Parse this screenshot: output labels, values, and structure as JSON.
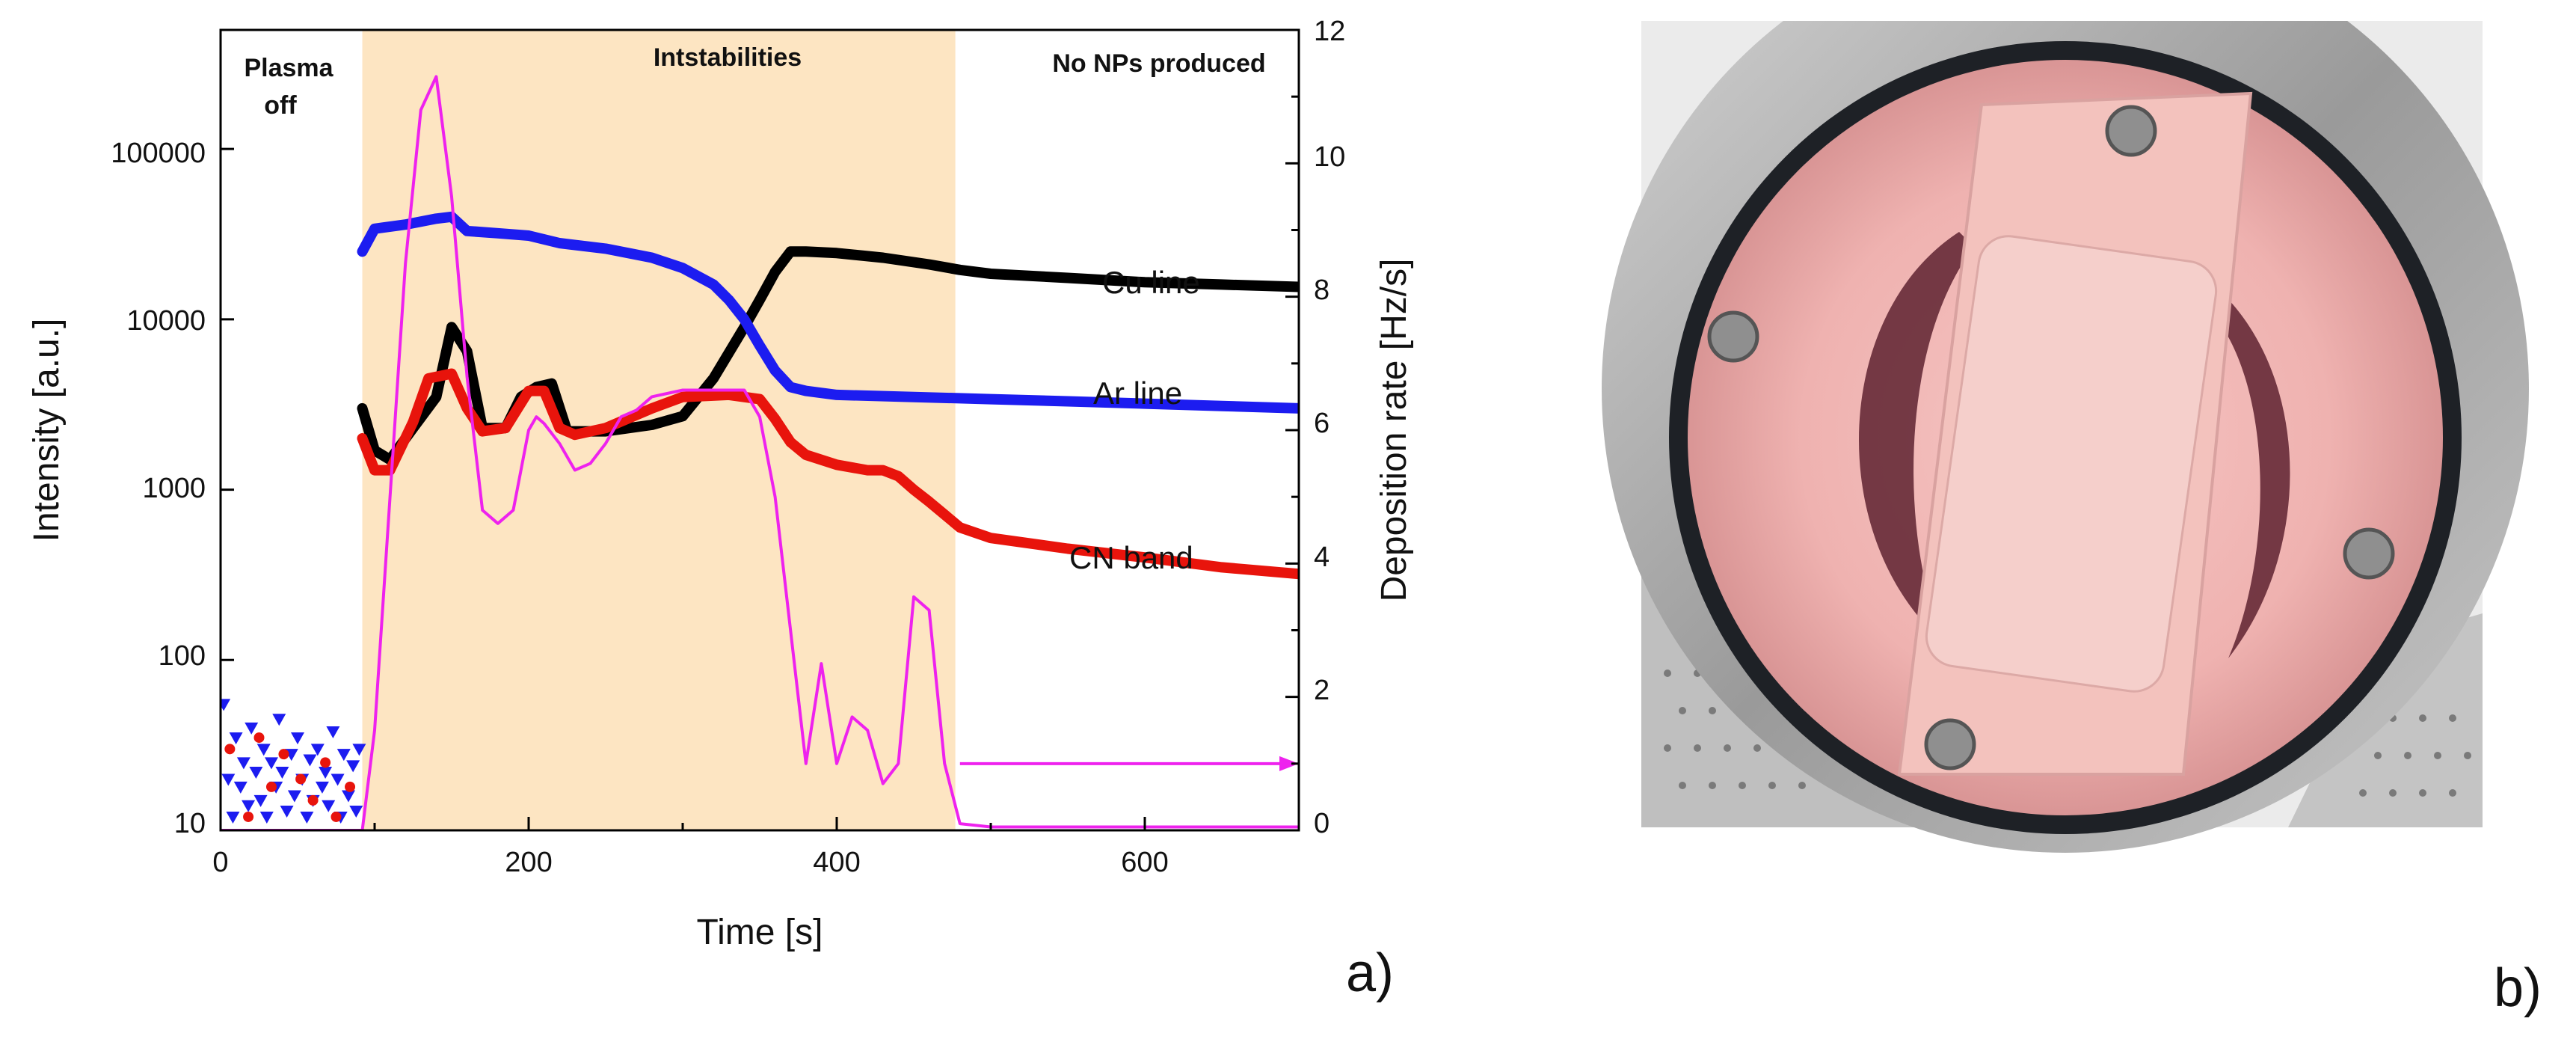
{
  "chart_data": {
    "type": "line",
    "panel_label": "a)",
    "xlabel": "Time [s]",
    "ylabel_left": "Intensity [a.u.]",
    "ylabel_right": "Deposition rate [Hz/s]",
    "xlim": [
      0,
      700
    ],
    "ylim_left": [
      10,
      500000
    ],
    "yscale_left": "log",
    "ylim_right": [
      0,
      12
    ],
    "x_ticks": [
      "0",
      "200",
      "400",
      "600"
    ],
    "y_left_ticks": [
      "10",
      "100",
      "1000",
      "10000",
      "100000"
    ],
    "y_right_ticks": [
      "0",
      "2",
      "4",
      "6",
      "8",
      "10",
      "12"
    ],
    "regions": [
      {
        "label_lines": [
          "Plasma",
          "off"
        ],
        "x_start": 0,
        "x_end": 92
      },
      {
        "label_lines": [
          "Intstabilities"
        ],
        "x_start": 92,
        "x_end": 477,
        "color": "#fde5c2"
      },
      {
        "label_lines": [
          "No NPs produced"
        ],
        "x_start": 477,
        "x_end": 700
      }
    ],
    "series": [
      {
        "name": "Cu line",
        "axis": "left",
        "color": "#000000",
        "x": [
          92,
          100,
          110,
          125,
          140,
          150,
          160,
          170,
          185,
          195,
          205,
          215,
          225,
          250,
          280,
          300,
          320,
          340,
          350,
          360,
          370,
          380,
          400,
          430,
          460,
          480,
          500,
          550,
          600,
          650,
          700
        ],
        "y": [
          3000,
          1700,
          1500,
          2300,
          3500,
          9000,
          6500,
          2300,
          2300,
          3500,
          4000,
          4200,
          2200,
          2200,
          2400,
          2700,
          4500,
          9000,
          13000,
          19000,
          25000,
          25000,
          24500,
          23000,
          21000,
          19500,
          18500,
          17500,
          16500,
          16000,
          15500
        ]
      },
      {
        "name": "Ar line",
        "axis": "left",
        "color": "#1c1cf0",
        "x": [
          92,
          100,
          120,
          140,
          150,
          160,
          180,
          200,
          220,
          250,
          280,
          300,
          320,
          330,
          340,
          350,
          360,
          370,
          380,
          400,
          450,
          500,
          550,
          600,
          650,
          700
        ],
        "y": [
          25000,
          34000,
          36000,
          39000,
          40000,
          33000,
          32000,
          31000,
          28000,
          26000,
          23000,
          20000,
          16000,
          13000,
          10000,
          7000,
          5000,
          4000,
          3800,
          3600,
          3500,
          3400,
          3300,
          3200,
          3100,
          3000
        ]
      },
      {
        "name": "CN band",
        "axis": "left",
        "color": "#e8140c",
        "x": [
          92,
          100,
          110,
          125,
          135,
          150,
          160,
          170,
          185,
          200,
          210,
          220,
          230,
          250,
          280,
          300,
          330,
          350,
          360,
          370,
          380,
          400,
          420,
          430,
          440,
          450,
          460,
          480,
          500,
          550,
          600,
          650,
          700
        ],
        "y": [
          2000,
          1300,
          1300,
          2500,
          4500,
          4800,
          3000,
          2200,
          2300,
          3800,
          3800,
          2300,
          2100,
          2300,
          3000,
          3500,
          3600,
          3400,
          2600,
          1900,
          1600,
          1400,
          1300,
          1300,
          1200,
          1000,
          850,
          600,
          520,
          450,
          400,
          350,
          320
        ]
      },
      {
        "name": "Deposition rate",
        "axis": "right",
        "color": "#ee22ee",
        "x": [
          0,
          92,
          100,
          110,
          120,
          130,
          140,
          150,
          160,
          170,
          180,
          190,
          200,
          205,
          210,
          220,
          230,
          240,
          250,
          260,
          270,
          280,
          300,
          320,
          340,
          350,
          360,
          370,
          380,
          390,
          400,
          410,
          420,
          430,
          440,
          450,
          460,
          470,
          480,
          500,
          550,
          600,
          650,
          700
        ],
        "y": [
          0,
          0,
          1.5,
          5.0,
          8.5,
          10.8,
          11.3,
          9.5,
          6.8,
          4.8,
          4.6,
          4.8,
          6.0,
          6.2,
          6.1,
          5.8,
          5.4,
          5.5,
          5.8,
          6.2,
          6.3,
          6.5,
          6.6,
          6.6,
          6.6,
          6.2,
          5.0,
          3.0,
          1.0,
          2.5,
          1.0,
          1.7,
          1.5,
          0.7,
          1.0,
          3.5,
          3.3,
          1.0,
          0.1,
          0.05,
          0.05,
          0.05,
          0.05,
          0.05
        ]
      },
      {
        "name": "Plasma off Ar noise",
        "axis": "left",
        "color": "#1c1cf0",
        "marker": "triangle-down",
        "x": [
          2,
          5,
          8,
          10,
          13,
          15,
          18,
          20,
          23,
          26,
          28,
          30,
          33,
          36,
          38,
          40,
          43,
          46,
          48,
          50,
          53,
          56,
          58,
          60,
          63,
          66,
          68,
          70,
          73,
          76,
          78,
          80,
          83,
          86,
          88,
          90
        ],
        "y": [
          55,
          20,
          12,
          35,
          18,
          25,
          14,
          40,
          22,
          15,
          30,
          12,
          25,
          18,
          45,
          22,
          13,
          28,
          16,
          35,
          20,
          12,
          26,
          15,
          30,
          18,
          22,
          14,
          38,
          20,
          12,
          28,
          16,
          24,
          13,
          30
        ]
      },
      {
        "name": "Plasma off CN noise",
        "axis": "left",
        "color": "#e8140c",
        "marker": "circle",
        "x": [
          6,
          18,
          25,
          33,
          41,
          52,
          60,
          68,
          75,
          84
        ],
        "y": [
          30,
          12,
          35,
          18,
          28,
          20,
          15,
          25,
          12,
          18
        ]
      }
    ],
    "line_labels": [
      "Cu line",
      "Ar line",
      "CN band"
    ],
    "arrow": {
      "x_start": 480,
      "x_end": 700,
      "y_right": 1.0,
      "color": "#ee22ee"
    }
  },
  "photo": {
    "panel_label": "b)"
  }
}
